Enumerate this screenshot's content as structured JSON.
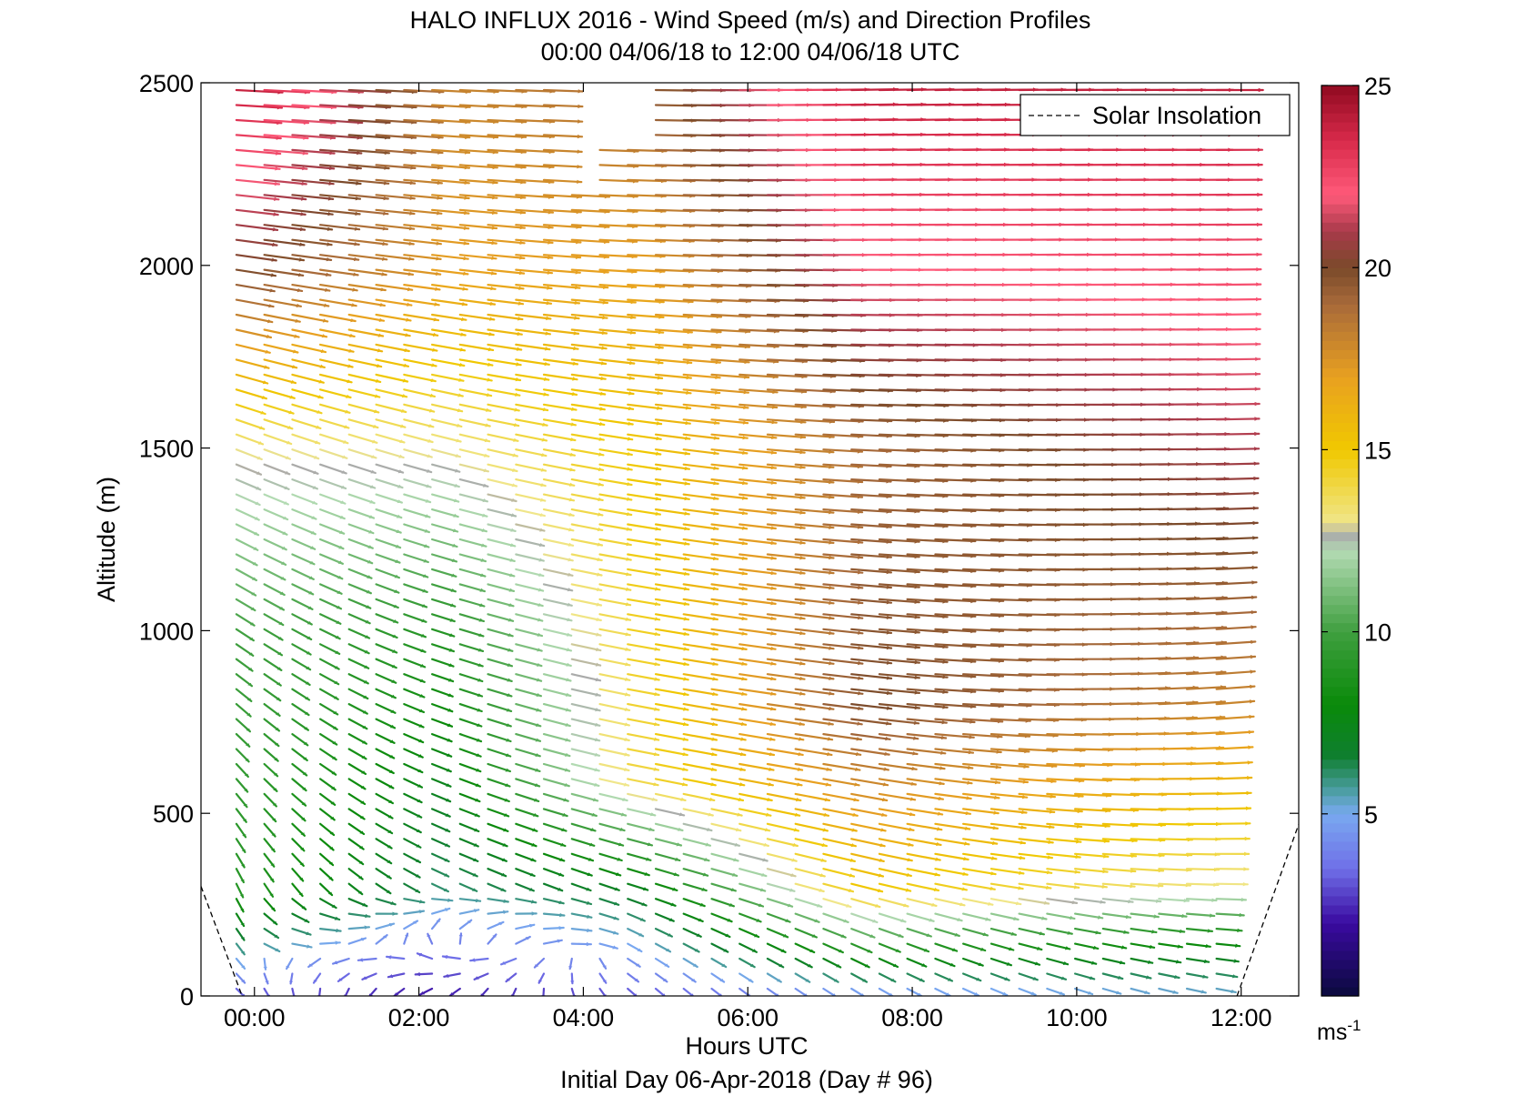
{
  "chart_data": {
    "type": "scatter",
    "title": "HALO INFLUX 2016 - Wind Speed (m/s) and Direction Profiles",
    "subtitle": "00:00 04/06/18 to 12:00 04/06/18  UTC",
    "xlabel": "Hours UTC",
    "xlabel2": "Initial Day 06-Apr-2018 (Day # 96)",
    "ylabel": "Altitude (m)",
    "xlim": [
      -0.65,
      12.7
    ],
    "ylim": [
      0,
      2500
    ],
    "x_ticks": [
      0,
      2,
      4,
      6,
      8,
      10,
      12
    ],
    "x_tick_labels": [
      "00:00",
      "02:00",
      "04:00",
      "06:00",
      "08:00",
      "10:00",
      "12:00"
    ],
    "y_ticks": [
      0,
      500,
      1000,
      1500,
      2000,
      2500
    ],
    "y_tick_labels": [
      "0",
      "500",
      "1000",
      "1500",
      "2000",
      "2500"
    ],
    "colorbar": {
      "range": [
        0,
        25
      ],
      "ticks": [
        5,
        10,
        15,
        20,
        25
      ],
      "tick_labels": [
        "5",
        "10",
        "15",
        "20",
        "25"
      ],
      "unit": "ms",
      "unit_exp": "-1",
      "stops": [
        {
          "v": 0,
          "c": "#0a0a3c"
        },
        {
          "v": 2,
          "c": "#3a0aa0"
        },
        {
          "v": 3.5,
          "c": "#6f6fe8"
        },
        {
          "v": 5,
          "c": "#79a9f0"
        },
        {
          "v": 5.6,
          "c": "#4f9fa8"
        },
        {
          "v": 6.6,
          "c": "#0f7f2f"
        },
        {
          "v": 8,
          "c": "#0a8a0a"
        },
        {
          "v": 10,
          "c": "#3f9f3f"
        },
        {
          "v": 12.2,
          "c": "#b2dab2"
        },
        {
          "v": 12.7,
          "c": "#aaaaaa"
        },
        {
          "v": 13,
          "c": "#f0e68a"
        },
        {
          "v": 15,
          "c": "#f0c800"
        },
        {
          "v": 17,
          "c": "#e8a020"
        },
        {
          "v": 19,
          "c": "#a86a3a"
        },
        {
          "v": 20,
          "c": "#7a4a2a"
        },
        {
          "v": 21,
          "c": "#a83a4a"
        },
        {
          "v": 22,
          "c": "#ff5a7a"
        },
        {
          "v": 23.5,
          "c": "#d82a4a"
        },
        {
          "v": 25,
          "c": "#900a20"
        }
      ]
    },
    "legend": {
      "position": "top-right",
      "entries": [
        "Solar Insolation"
      ]
    },
    "solar_insolation": {
      "style": "dashed",
      "segments": [
        {
          "x": [
            -0.65,
            -0.15
          ],
          "y": [
            300,
            0
          ]
        },
        {
          "x": [
            11.95,
            12.7
          ],
          "y": [
            0,
            470
          ]
        }
      ]
    },
    "profile_times_h": [
      -0.22,
      0.12,
      0.46,
      0.8,
      1.15,
      1.48,
      1.82,
      2.16,
      2.5,
      2.84,
      3.18,
      3.52,
      3.86,
      4.2,
      4.54,
      4.88,
      5.22,
      5.56,
      5.9,
      6.24,
      6.58,
      6.92,
      7.26,
      7.6,
      7.94,
      8.28,
      8.62,
      8.96,
      9.3,
      9.64,
      9.98,
      10.32,
      10.66,
      11.0,
      11.34,
      11.7
    ],
    "altitude_step_m": 41,
    "altitude_min_m": 20,
    "altitude_max_m": 2490,
    "data_gap": {
      "x": [
        3.85,
        4.8
      ],
      "y_above_m": 2200,
      "except_x_h": [
        4.2,
        4.54
      ],
      "except_y_below_m": 2350,
      "top_gap_x": [
        10.5,
        10.95
      ],
      "top_gap_y_above_m": 2480
    },
    "wind_field_keyframes": [
      {
        "t": -0.22,
        "levels": [
          {
            "z": 0,
            "s": 3,
            "d": 330
          },
          {
            "z": 300,
            "s": 9,
            "d": 345
          },
          {
            "z": 1000,
            "s": 10,
            "d": 320
          },
          {
            "z": 1500,
            "s": 13,
            "d": 305
          },
          {
            "z": 2000,
            "s": 20,
            "d": 285
          },
          {
            "z": 2500,
            "s": 24,
            "d": 275
          }
        ]
      },
      {
        "t": 2.2,
        "levels": [
          {
            "z": 0,
            "s": 2,
            "d": 30
          },
          {
            "z": 300,
            "s": 6,
            "d": 310
          },
          {
            "z": 1000,
            "s": 9,
            "d": 300
          },
          {
            "z": 1500,
            "s": 13,
            "d": 295
          },
          {
            "z": 2000,
            "s": 17,
            "d": 282
          },
          {
            "z": 2500,
            "s": 18,
            "d": 275
          }
        ]
      },
      {
        "t": 4.5,
        "levels": [
          {
            "z": 0,
            "s": 3,
            "d": 330
          },
          {
            "z": 300,
            "s": 7,
            "d": 300
          },
          {
            "z": 600,
            "s": 14,
            "d": 290
          },
          {
            "z": 1500,
            "s": 15,
            "d": 285
          },
          {
            "z": 2000,
            "s": 17,
            "d": 275
          },
          {
            "z": 2500,
            "s": 19,
            "d": 272
          }
        ]
      },
      {
        "t": 7.2,
        "levels": [
          {
            "z": 0,
            "s": 4,
            "d": 320
          },
          {
            "z": 300,
            "s": 15,
            "d": 295
          },
          {
            "z": 800,
            "s": 20,
            "d": 282
          },
          {
            "z": 1500,
            "s": 19,
            "d": 275
          },
          {
            "z": 2000,
            "s": 22,
            "d": 270
          },
          {
            "z": 2500,
            "s": 24,
            "d": 268
          }
        ]
      },
      {
        "t": 11.7,
        "levels": [
          {
            "z": 0,
            "s": 5,
            "d": 290
          },
          {
            "z": 150,
            "s": 8,
            "d": 280
          },
          {
            "z": 300,
            "s": 13,
            "d": 272
          },
          {
            "z": 800,
            "s": 18,
            "d": 262
          },
          {
            "z": 1500,
            "s": 21,
            "d": 268
          },
          {
            "z": 2500,
            "s": 24,
            "d": 270
          }
        ]
      }
    ]
  }
}
